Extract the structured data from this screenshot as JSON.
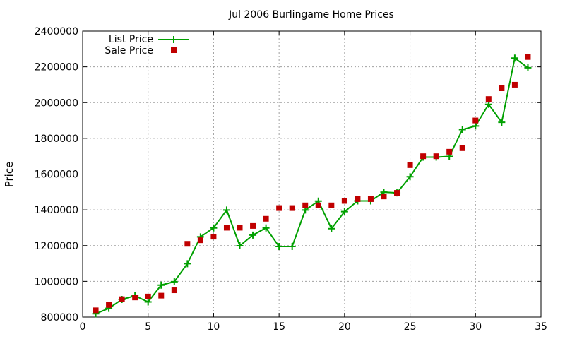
{
  "chart_data": {
    "type": "line",
    "title": "Jul 2006 Burlingame Home Prices",
    "xlabel": "",
    "ylabel": "Price",
    "xlim": [
      0,
      35
    ],
    "ylim": [
      800000,
      2400000
    ],
    "xticks": [
      0,
      5,
      10,
      15,
      20,
      25,
      30,
      35
    ],
    "yticks": [
      800000,
      1000000,
      1200000,
      1400000,
      1600000,
      1800000,
      2000000,
      2200000,
      2400000
    ],
    "grid": true,
    "legend_position": "top-left",
    "x": [
      1,
      2,
      3,
      4,
      5,
      6,
      7,
      8,
      9,
      10,
      11,
      12,
      13,
      14,
      15,
      16,
      17,
      18,
      19,
      20,
      21,
      22,
      23,
      24,
      25,
      26,
      27,
      28,
      29,
      30,
      31,
      32,
      33,
      34
    ],
    "series": [
      {
        "name": "List Price",
        "style": "line+cross",
        "color": "#00a000",
        "values": [
          819000,
          849000,
          899000,
          919000,
          885000,
          979000,
          998000,
          1099000,
          1249000,
          1299000,
          1399000,
          1199000,
          1259000,
          1299000,
          1195000,
          1195000,
          1399000,
          1449000,
          1295000,
          1390000,
          1450000,
          1450000,
          1499000,
          1495000,
          1585000,
          1695000,
          1695000,
          1699000,
          1849000,
          1869000,
          1990000,
          1890000,
          2249000,
          2195000
        ]
      },
      {
        "name": "Sale Price",
        "style": "square",
        "color": "#c00000",
        "values": [
          838000,
          868000,
          900000,
          910000,
          915000,
          920000,
          950000,
          1210000,
          1230000,
          1250000,
          1300000,
          1300000,
          1310000,
          1350000,
          1410000,
          1410000,
          1425000,
          1425000,
          1425000,
          1450000,
          1460000,
          1460000,
          1475000,
          1495000,
          1650000,
          1700000,
          1700000,
          1725000,
          1745000,
          1900000,
          2020000,
          2080000,
          2100000,
          2255000
        ]
      }
    ]
  }
}
